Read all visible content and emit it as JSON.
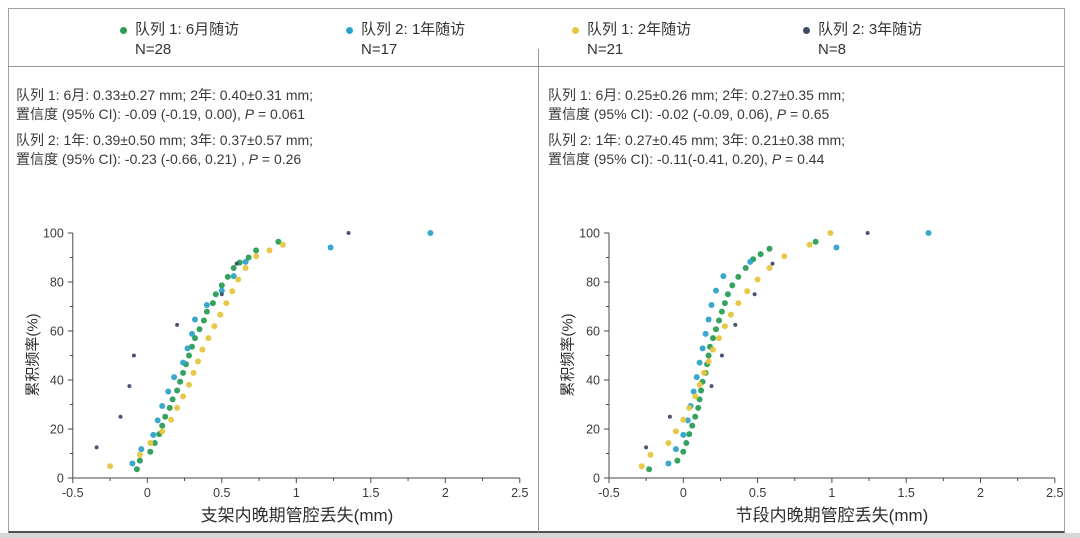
{
  "colors": {
    "cohort1_6m": "#2a9d57",
    "cohort2_1y": "#2fa3c9",
    "cohort1_2y": "#e6c53f",
    "cohort2_3y": "#3e4c68",
    "axis": "#4a4a4a",
    "tick_text": "#3a3a3a",
    "border": "#a3a3a3"
  },
  "legend": {
    "items": [
      {
        "label": "队列 1: 6月随访",
        "n": "N=28",
        "color": "#2a9d57"
      },
      {
        "label": "队列 2: 1年随访",
        "n": "N=17",
        "color": "#2fa3c9"
      },
      {
        "label": "队列 1: 2年随访",
        "n": "N=21",
        "color": "#e6c53f"
      },
      {
        "label": "队列 2: 3年随访",
        "n": "N=8",
        "color": "#3e4c68"
      }
    ]
  },
  "annotations": {
    "left": {
      "line1": "队列 1: 6月: 0.33±0.27 mm; 2年: 0.40±0.31 mm;",
      "line2_prefix": "置信度 (95% CI): -0.09 (-0.19, 0.00), ",
      "line2_p": "P",
      "line2_value": " = 0.061",
      "line3": "队列 2: 1年: 0.39±0.50 mm; 3年: 0.37±0.57 mm;",
      "line4_prefix": "置信度 (95% CI): -0.23 (-0.66, 0.21) , ",
      "line4_p": "P",
      "line4_value": " = 0.26"
    },
    "right": {
      "line1": "队列 1: 6月: 0.25±0.26 mm; 2年: 0.27±0.35 mm;",
      "line2_prefix": "置信度 (95% CI): -0.02 (-0.09, 0.06), ",
      "line2_p": "P",
      "line2_value": " = 0.65",
      "line3": "队列 2: 1年: 0.27±0.45 mm; 3年: 0.21±0.38 mm;",
      "line4_prefix": "置信度 (95% CI): -0.11(-0.41, 0.20), ",
      "line4_p": "P",
      "line4_value": " = 0.44"
    }
  },
  "chart_data": [
    {
      "type": "scatter",
      "xlabel": "支架内晚期管腔丢失(mm)",
      "ylabel": "累积频率(%)",
      "xlim": [
        -0.5,
        2.5
      ],
      "ylim": [
        0,
        100
      ],
      "xticks": [
        "-0.5",
        "0",
        "0.5",
        "1",
        "1.5",
        "2",
        "2.5"
      ],
      "yticks": [
        "0",
        "20",
        "40",
        "60",
        "80",
        "100"
      ],
      "x_minor_step": 0.25,
      "y_minor_step": 10,
      "grid": false,
      "series": [
        {
          "name": "队列 1: 6月随访",
          "n": 28,
          "color": "#2a9d57",
          "marker_r": 3,
          "points": [
            [
              -0.07,
              3.6
            ],
            [
              -0.05,
              7.1
            ],
            [
              0.02,
              10.7
            ],
            [
              0.05,
              14.3
            ],
            [
              0.08,
              17.9
            ],
            [
              0.1,
              21.4
            ],
            [
              0.12,
              25.0
            ],
            [
              0.15,
              28.6
            ],
            [
              0.17,
              32.1
            ],
            [
              0.2,
              35.7
            ],
            [
              0.22,
              39.3
            ],
            [
              0.24,
              42.9
            ],
            [
              0.26,
              46.4
            ],
            [
              0.28,
              50.0
            ],
            [
              0.3,
              53.6
            ],
            [
              0.32,
              57.1
            ],
            [
              0.35,
              60.7
            ],
            [
              0.38,
              64.3
            ],
            [
              0.4,
              67.9
            ],
            [
              0.44,
              71.4
            ],
            [
              0.46,
              75.0
            ],
            [
              0.5,
              78.6
            ],
            [
              0.54,
              82.1
            ],
            [
              0.58,
              85.7
            ],
            [
              0.62,
              87.9
            ],
            [
              0.68,
              90.0
            ],
            [
              0.73,
              92.9
            ],
            [
              0.88,
              96.4
            ]
          ]
        },
        {
          "name": "队列 2: 1年随访",
          "n": 17,
          "color": "#2fa3c9",
          "marker_r": 3,
          "points": [
            [
              -0.1,
              5.9
            ],
            [
              -0.04,
              11.8
            ],
            [
              0.04,
              17.6
            ],
            [
              0.07,
              23.5
            ],
            [
              0.1,
              29.4
            ],
            [
              0.14,
              35.3
            ],
            [
              0.18,
              41.2
            ],
            [
              0.24,
              47.1
            ],
            [
              0.27,
              52.9
            ],
            [
              0.3,
              58.8
            ],
            [
              0.32,
              64.7
            ],
            [
              0.4,
              70.6
            ],
            [
              0.5,
              76.5
            ],
            [
              0.58,
              82.4
            ],
            [
              0.66,
              88.2
            ],
            [
              1.23,
              94.1
            ],
            [
              1.9,
              100.0
            ]
          ]
        },
        {
          "name": "队列 1: 2年随访",
          "n": 21,
          "color": "#e6c53f",
          "marker_r": 3,
          "points": [
            [
              -0.25,
              4.8
            ],
            [
              -0.05,
              9.5
            ],
            [
              0.02,
              14.3
            ],
            [
              0.1,
              19.0
            ],
            [
              0.16,
              23.8
            ],
            [
              0.2,
              28.6
            ],
            [
              0.24,
              33.3
            ],
            [
              0.28,
              38.1
            ],
            [
              0.31,
              42.9
            ],
            [
              0.34,
              47.6
            ],
            [
              0.37,
              52.4
            ],
            [
              0.41,
              57.1
            ],
            [
              0.45,
              61.9
            ],
            [
              0.49,
              66.7
            ],
            [
              0.53,
              71.4
            ],
            [
              0.57,
              76.2
            ],
            [
              0.61,
              81.0
            ],
            [
              0.66,
              85.7
            ],
            [
              0.73,
              90.5
            ],
            [
              0.82,
              92.9
            ],
            [
              0.91,
              95.2
            ]
          ]
        },
        {
          "name": "队列 2: 3年随访",
          "n": 8,
          "color": "#3e4c68",
          "marker_r": 2,
          "points": [
            [
              -0.34,
              12.5
            ],
            [
              -0.18,
              25.0
            ],
            [
              -0.12,
              37.5
            ],
            [
              -0.09,
              50.0
            ],
            [
              0.2,
              62.5
            ],
            [
              0.5,
              75.0
            ],
            [
              0.6,
              87.5
            ],
            [
              1.35,
              100.0
            ]
          ]
        }
      ]
    },
    {
      "type": "scatter",
      "xlabel": "节段内晚期管腔丢失(mm)",
      "ylabel": "累积频率(%)",
      "xlim": [
        -0.5,
        2.5
      ],
      "ylim": [
        0,
        100
      ],
      "xticks": [
        "-0.5",
        "0",
        "0.5",
        "1",
        "1.5",
        "2",
        "2.5"
      ],
      "yticks": [
        "0",
        "20",
        "40",
        "60",
        "80",
        "100"
      ],
      "x_minor_step": 0.25,
      "y_minor_step": 10,
      "grid": false,
      "series": [
        {
          "name": "队列 1: 6月随访",
          "n": 28,
          "color": "#2a9d57",
          "marker_r": 3,
          "points": [
            [
              -0.23,
              3.6
            ],
            [
              -0.04,
              7.1
            ],
            [
              0.0,
              10.7
            ],
            [
              0.02,
              14.3
            ],
            [
              0.04,
              17.9
            ],
            [
              0.06,
              21.4
            ],
            [
              0.08,
              25.0
            ],
            [
              0.1,
              28.6
            ],
            [
              0.11,
              32.1
            ],
            [
              0.12,
              35.7
            ],
            [
              0.13,
              39.3
            ],
            [
              0.15,
              42.9
            ],
            [
              0.16,
              46.4
            ],
            [
              0.17,
              50.0
            ],
            [
              0.18,
              53.6
            ],
            [
              0.2,
              57.1
            ],
            [
              0.22,
              60.7
            ],
            [
              0.24,
              64.3
            ],
            [
              0.26,
              67.9
            ],
            [
              0.28,
              71.4
            ],
            [
              0.3,
              75.0
            ],
            [
              0.33,
              78.6
            ],
            [
              0.37,
              82.1
            ],
            [
              0.42,
              85.7
            ],
            [
              0.47,
              89.3
            ],
            [
              0.52,
              91.4
            ],
            [
              0.58,
              93.6
            ],
            [
              0.89,
              96.4
            ]
          ]
        },
        {
          "name": "队列 2: 1年随访",
          "n": 17,
          "color": "#2fa3c9",
          "marker_r": 3,
          "points": [
            [
              -0.1,
              5.9
            ],
            [
              -0.05,
              11.8
            ],
            [
              0.0,
              17.6
            ],
            [
              0.03,
              23.5
            ],
            [
              0.05,
              29.4
            ],
            [
              0.07,
              35.3
            ],
            [
              0.09,
              41.2
            ],
            [
              0.11,
              47.1
            ],
            [
              0.13,
              52.9
            ],
            [
              0.15,
              58.8
            ],
            [
              0.17,
              64.7
            ],
            [
              0.19,
              70.6
            ],
            [
              0.22,
              76.5
            ],
            [
              0.27,
              82.4
            ],
            [
              0.45,
              88.2
            ],
            [
              1.03,
              94.1
            ],
            [
              1.65,
              100.0
            ]
          ]
        },
        {
          "name": "队列 1: 2年随访",
          "n": 21,
          "color": "#e6c53f",
          "marker_r": 3,
          "points": [
            [
              -0.28,
              4.8
            ],
            [
              -0.22,
              9.5
            ],
            [
              -0.1,
              14.3
            ],
            [
              -0.05,
              19.0
            ],
            [
              0.0,
              23.8
            ],
            [
              0.04,
              28.6
            ],
            [
              0.08,
              33.3
            ],
            [
              0.11,
              38.1
            ],
            [
              0.14,
              42.9
            ],
            [
              0.17,
              47.6
            ],
            [
              0.2,
              52.4
            ],
            [
              0.24,
              57.1
            ],
            [
              0.28,
              61.9
            ],
            [
              0.32,
              66.7
            ],
            [
              0.37,
              71.4
            ],
            [
              0.43,
              76.2
            ],
            [
              0.5,
              81.0
            ],
            [
              0.58,
              85.7
            ],
            [
              0.68,
              90.5
            ],
            [
              0.85,
              95.2
            ],
            [
              0.99,
              100.0
            ]
          ]
        },
        {
          "name": "队列 2: 3年随访",
          "n": 8,
          "color": "#3e4c68",
          "marker_r": 2,
          "points": [
            [
              -0.25,
              12.5
            ],
            [
              -0.09,
              25.0
            ],
            [
              0.19,
              37.5
            ],
            [
              0.26,
              50.0
            ],
            [
              0.35,
              62.5
            ],
            [
              0.48,
              75.0
            ],
            [
              0.6,
              87.5
            ],
            [
              1.24,
              100.0
            ]
          ]
        }
      ]
    }
  ]
}
